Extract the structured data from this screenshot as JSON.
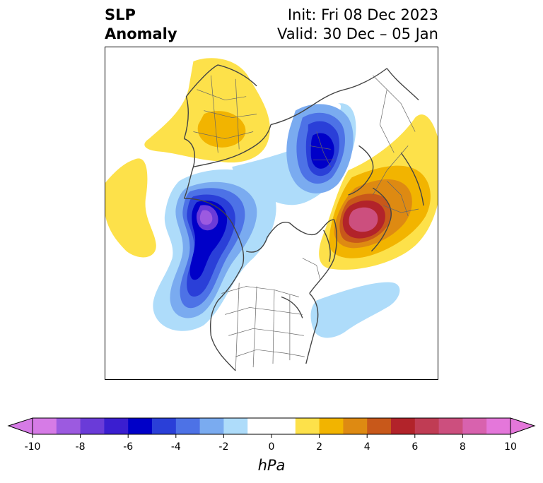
{
  "title": {
    "variable_line1": "SLP",
    "variable_line2": "Anomaly",
    "init": "Init: Fri 08 Dec 2023",
    "valid": "Valid: 30 Dec – 05 Jan"
  },
  "colorbar": {
    "unit": "hPa",
    "min": -10,
    "max": 10,
    "extend": "both",
    "ticks": [
      "-10",
      "-8",
      "-6",
      "-4",
      "-2",
      "0",
      "2",
      "4",
      "6",
      "8",
      "10"
    ],
    "colors": [
      "#d67be6",
      "#9c5ae0",
      "#6a3bd8",
      "#3a1ed0",
      "#0000c8",
      "#2a3fd8",
      "#4d72e6",
      "#7aabf0",
      "#aedcfa",
      "#ffffff",
      "#ffffff",
      "#fde14a",
      "#f2b400",
      "#de8a12",
      "#c8581a",
      "#b2232a",
      "#c03c54",
      "#cc4f7e",
      "#d862ae",
      "#e477da"
    ]
  },
  "map": {
    "projection": "north-polar-stereographic",
    "field": "sea-level-pressure-anomaly"
  }
}
